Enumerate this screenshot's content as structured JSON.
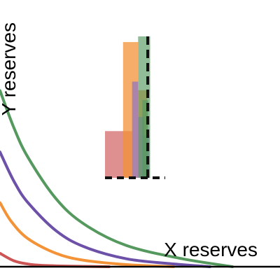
{
  "chart_data": [
    {
      "type": "line",
      "xlabel": "X reserves",
      "ylabel": "Y reserves",
      "xlim": [
        0,
        10
      ],
      "ylim": [
        0,
        10
      ],
      "grid": false,
      "series": [
        {
          "color": "#cc5555",
          "points": [
            [
              0.0,
              0.5
            ],
            [
              0.5,
              0.22
            ],
            [
              1.0,
              0.1
            ],
            [
              1.5,
              0.05
            ],
            [
              2.5,
              0.02
            ],
            [
              3.9,
              0.0
            ]
          ]
        },
        {
          "color": "#f39237",
          "points": [
            [
              0.0,
              2.4
            ],
            [
              0.4,
              1.7
            ],
            [
              1.0,
              1.05
            ],
            [
              2.0,
              0.5
            ],
            [
              3.0,
              0.24
            ],
            [
              4.5,
              0.08
            ],
            [
              6.2,
              0.0
            ]
          ]
        },
        {
          "color": "#6d51a8",
          "points": [
            [
              0.0,
              4.3
            ],
            [
              0.5,
              3.2
            ],
            [
              1.0,
              2.4
            ],
            [
              2.0,
              1.35
            ],
            [
              3.0,
              0.75
            ],
            [
              4.5,
              0.3
            ],
            [
              6.0,
              0.12
            ],
            [
              7.5,
              0.0
            ]
          ]
        },
        {
          "color": "#55995f",
          "points": [
            [
              0.0,
              6.6
            ],
            [
              0.5,
              5.2
            ],
            [
              1.0,
              4.1
            ],
            [
              2.0,
              2.55
            ],
            [
              3.0,
              1.6
            ],
            [
              4.5,
              0.8
            ],
            [
              6.5,
              0.3
            ],
            [
              8.3,
              0.0
            ]
          ]
        }
      ]
    },
    {
      "type": "bar",
      "orientation": "stacked-histogram",
      "reference_line": "dashed",
      "series": [
        {
          "color": "#d06060",
          "bins": [
            [
              0.0,
              0.45,
              0.33
            ]
          ]
        },
        {
          "color": "#f39237",
          "bins": [
            [
              0.3,
              0.55,
              0.96
            ],
            [
              0.55,
              0.7,
              0.62
            ]
          ]
        },
        {
          "color": "#8a72c6",
          "bins": [
            [
              0.45,
              0.55,
              0.68
            ],
            [
              0.55,
              0.65,
              0.43
            ],
            [
              0.65,
              0.74,
              0.3
            ]
          ]
        },
        {
          "color": "#55995f",
          "bins": [
            [
              0.55,
              0.75,
              1.0
            ],
            [
              0.62,
              0.72,
              0.55
            ]
          ]
        }
      ]
    }
  ]
}
